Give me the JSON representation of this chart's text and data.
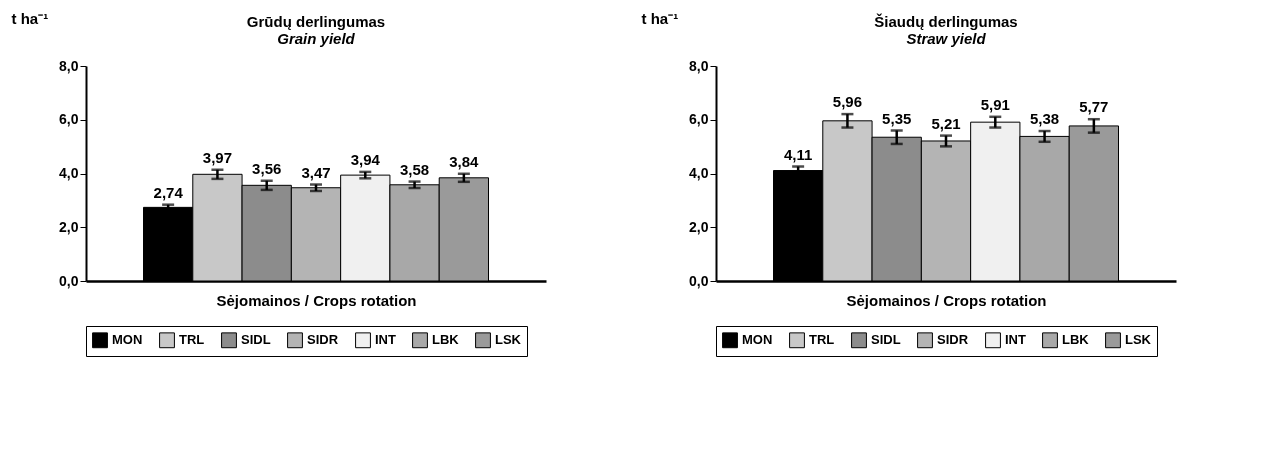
{
  "chart_data": [
    {
      "type": "bar",
      "title": "Grūdų derlingumas",
      "subtitle": "Grain yield",
      "ylabel": "t ha⁻¹",
      "xlabel": "Sėjomainos / Crops rotation",
      "categories": [
        null
      ],
      "ylim": [
        0,
        8
      ],
      "yticks": [
        {
          "value": 0,
          "label": "0,0"
        },
        {
          "value": 2,
          "label": "2,0"
        },
        {
          "value": 4,
          "label": "4,0"
        },
        {
          "value": 6,
          "label": "6,0"
        },
        {
          "value": 8,
          "label": "8,0"
        }
      ],
      "grid": false,
      "legend": "bottom",
      "series": [
        {
          "name": "MON",
          "color": "#000000",
          "values": [
            2.74
          ],
          "errors": [
            0.1
          ],
          "value_labels": [
            "2,74"
          ]
        },
        {
          "name": "TRL",
          "color": "#c8c8c8",
          "values": [
            3.97
          ],
          "errors": [
            0.17
          ],
          "value_labels": [
            "3,97"
          ]
        },
        {
          "name": "SIDL",
          "color": "#8c8c8c",
          "values": [
            3.56
          ],
          "errors": [
            0.17
          ],
          "value_labels": [
            "3,56"
          ]
        },
        {
          "name": "SIDR",
          "color": "#b4b4b4",
          "values": [
            3.47
          ],
          "errors": [
            0.12
          ],
          "value_labels": [
            "3,47"
          ]
        },
        {
          "name": "INT",
          "color": "#f0f0f0",
          "values": [
            3.94
          ],
          "errors": [
            0.12
          ],
          "value_labels": [
            "3,94"
          ]
        },
        {
          "name": "LBK",
          "color": "#a8a8a8",
          "values": [
            3.58
          ],
          "errors": [
            0.12
          ],
          "value_labels": [
            "3,58"
          ]
        },
        {
          "name": "LSK",
          "color": "#9a9a9a",
          "values": [
            3.84
          ],
          "errors": [
            0.15
          ],
          "value_labels": [
            "3,84"
          ]
        }
      ]
    },
    {
      "type": "bar",
      "title": "Šiaudų derlingumas",
      "subtitle": "Straw yield",
      "ylabel": "t ha⁻¹",
      "xlabel": "Sėjomainos / Crops rotation",
      "categories": [
        null
      ],
      "ylim": [
        0,
        8
      ],
      "yticks": [
        {
          "value": 0,
          "label": "0,0"
        },
        {
          "value": 2,
          "label": "2,0"
        },
        {
          "value": 4,
          "label": "4,0"
        },
        {
          "value": 6,
          "label": "6,0"
        },
        {
          "value": 8,
          "label": "8,0"
        }
      ],
      "grid": false,
      "legend": "bottom",
      "series": [
        {
          "name": "MON",
          "color": "#000000",
          "values": [
            4.11
          ],
          "errors": [
            0.15
          ],
          "value_labels": [
            "4,11"
          ]
        },
        {
          "name": "TRL",
          "color": "#c8c8c8",
          "values": [
            5.96
          ],
          "errors": [
            0.25
          ],
          "value_labels": [
            "5,96"
          ]
        },
        {
          "name": "SIDL",
          "color": "#8c8c8c",
          "values": [
            5.35
          ],
          "errors": [
            0.25
          ],
          "value_labels": [
            "5,35"
          ]
        },
        {
          "name": "SIDR",
          "color": "#b4b4b4",
          "values": [
            5.21
          ],
          "errors": [
            0.2
          ],
          "value_labels": [
            "5,21"
          ]
        },
        {
          "name": "INT",
          "color": "#f0f0f0",
          "values": [
            5.91
          ],
          "errors": [
            0.2
          ],
          "value_labels": [
            "5,91"
          ]
        },
        {
          "name": "LBK",
          "color": "#a8a8a8",
          "values": [
            5.38
          ],
          "errors": [
            0.2
          ],
          "value_labels": [
            "5,38"
          ]
        },
        {
          "name": "LSK",
          "color": "#9a9a9a",
          "values": [
            5.77
          ],
          "errors": [
            0.25
          ],
          "value_labels": [
            "5,77"
          ]
        }
      ]
    }
  ]
}
